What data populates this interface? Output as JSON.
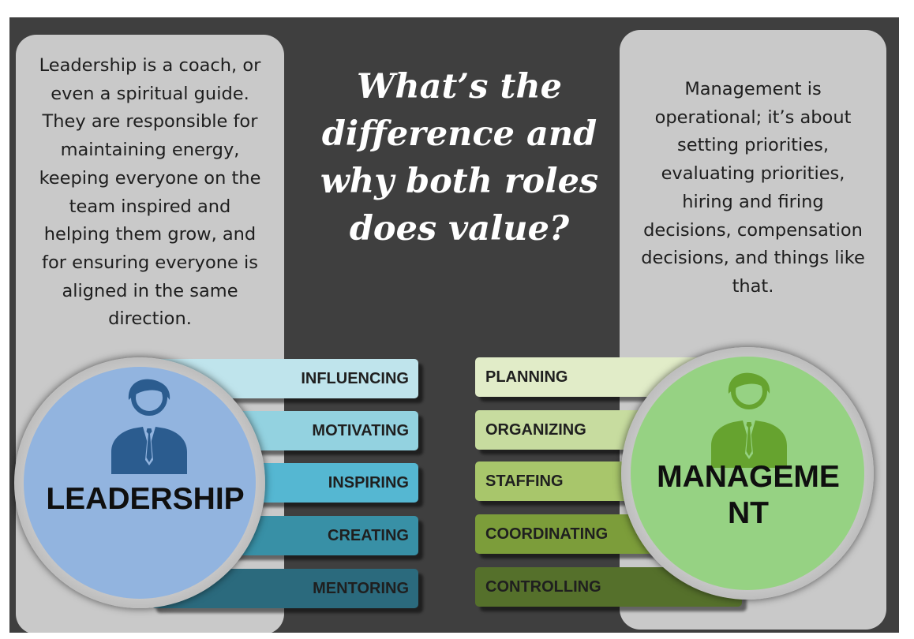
{
  "headline": [
    "What’s the",
    "difference and",
    "why both roles",
    "does value?"
  ],
  "left_panel": {
    "lines": [
      "Leadership is a coach, or",
      "even a spiritual guide.",
      "They are responsible for",
      "maintaining energy,",
      "keeping everyone on the",
      "team inspired and",
      "helping them grow, and",
      "for ensuring everyone is",
      "aligned in the same",
      "direction."
    ]
  },
  "right_panel": {
    "lines": [
      "Management is",
      "operational; it’s about",
      "setting priorities,",
      "evaluating priorities,",
      "hiring and firing",
      "decisions, compensation",
      "decisions, and things like",
      "that."
    ]
  },
  "leadership": {
    "label": "LEADERSHIP",
    "icon": "person-icon",
    "circle_color": "#92b4df",
    "icon_color": "#2b5c8f",
    "bars": [
      {
        "label": "INFLUENCING",
        "color": "#bfe4ec"
      },
      {
        "label": "MOTIVATING",
        "color": "#93d2e0"
      },
      {
        "label": "INSPIRING",
        "color": "#55b7d2"
      },
      {
        "label": "CREATING",
        "color": "#3890a6"
      },
      {
        "label": "MENTORING",
        "color": "#2b6a7d"
      }
    ]
  },
  "management": {
    "label_lines": [
      "MANAGEME",
      "NT"
    ],
    "icon": "person-icon",
    "circle_color": "#96d283",
    "icon_color": "#66a32f",
    "bars": [
      {
        "label": "PLANNING",
        "color": "#e1ecc8"
      },
      {
        "label": "ORGANIZING",
        "color": "#c7dc9f"
      },
      {
        "label": "STAFFING",
        "color": "#a8c66b"
      },
      {
        "label": "COORDINATING",
        "color": "#7c9d3a"
      },
      {
        "label": "CONTROLLING",
        "color": "#55702b"
      }
    ]
  }
}
